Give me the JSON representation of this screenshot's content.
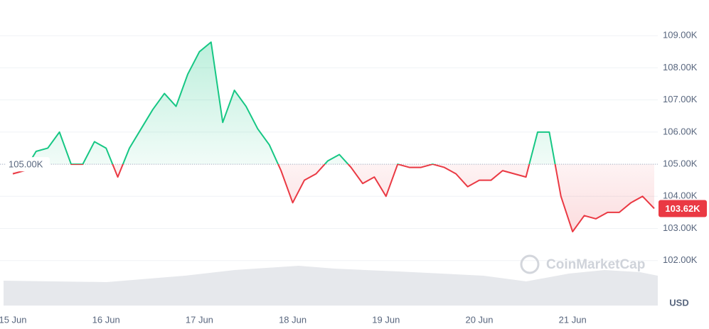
{
  "chart_data": {
    "type": "line",
    "categories": [
      "15 Jun",
      null,
      null,
      null,
      null,
      null,
      null,
      null,
      "16 Jun",
      null,
      null,
      null,
      null,
      null,
      null,
      null,
      "17 Jun",
      null,
      null,
      null,
      null,
      null,
      null,
      null,
      "18 Jun",
      null,
      null,
      null,
      null,
      null,
      null,
      null,
      "19 Jun",
      null,
      null,
      null,
      null,
      null,
      null,
      null,
      "20 Jun",
      null,
      null,
      null,
      null,
      null,
      null,
      null,
      "21 Jun",
      null,
      null,
      null,
      null,
      null,
      null,
      null
    ],
    "values": [
      104700,
      104800,
      105400,
      105500,
      106000,
      105000,
      105000,
      105700,
      105500,
      104600,
      105500,
      106100,
      106700,
      107200,
      106800,
      107800,
      108500,
      108800,
      106300,
      107300,
      106800,
      106100,
      105600,
      104800,
      103800,
      104500,
      104700,
      105100,
      105300,
      104900,
      104400,
      104600,
      104000,
      105000,
      104900,
      104900,
      105000,
      104900,
      104700,
      104300,
      104500,
      104500,
      104800,
      104700,
      104600,
      106000,
      106000,
      104000,
      102900,
      103400,
      103300,
      103500,
      103500,
      103800,
      104000,
      103620
    ],
    "value_labels": [
      null,
      null,
      null,
      null,
      null,
      null,
      null,
      null,
      null,
      null,
      null,
      null,
      null,
      null,
      null,
      null,
      null,
      null,
      null,
      null,
      null,
      null,
      null,
      null,
      null,
      null,
      null,
      null,
      null,
      null,
      null,
      null,
      null,
      null,
      null,
      null,
      null,
      null,
      null,
      null,
      null,
      null,
      null,
      null,
      null,
      null,
      null,
      null,
      null,
      null,
      null,
      null,
      null,
      null,
      null,
      "103.62K"
    ],
    "baseline": {
      "value": 105000,
      "label": "105.00K"
    },
    "up_color": "#16c784",
    "down_color": "#ea3943",
    "ylim": [
      100600,
      110000
    ],
    "yticks": [
      {
        "value": 102000,
        "label": "102.00K"
      },
      {
        "value": 103000,
        "label": "103.00K"
      },
      {
        "value": 104000,
        "label": "104.00K"
      },
      {
        "value": 105000,
        "label": "105.00K"
      },
      {
        "value": 106000,
        "label": "106.00K"
      },
      {
        "value": 107000,
        "label": "107.00K"
      },
      {
        "value": 108000,
        "label": "108.00K"
      },
      {
        "value": 109000,
        "label": "109.00K"
      }
    ],
    "y_unit": "USD",
    "watermark": "CoinMarketCap",
    "grid": true
  }
}
